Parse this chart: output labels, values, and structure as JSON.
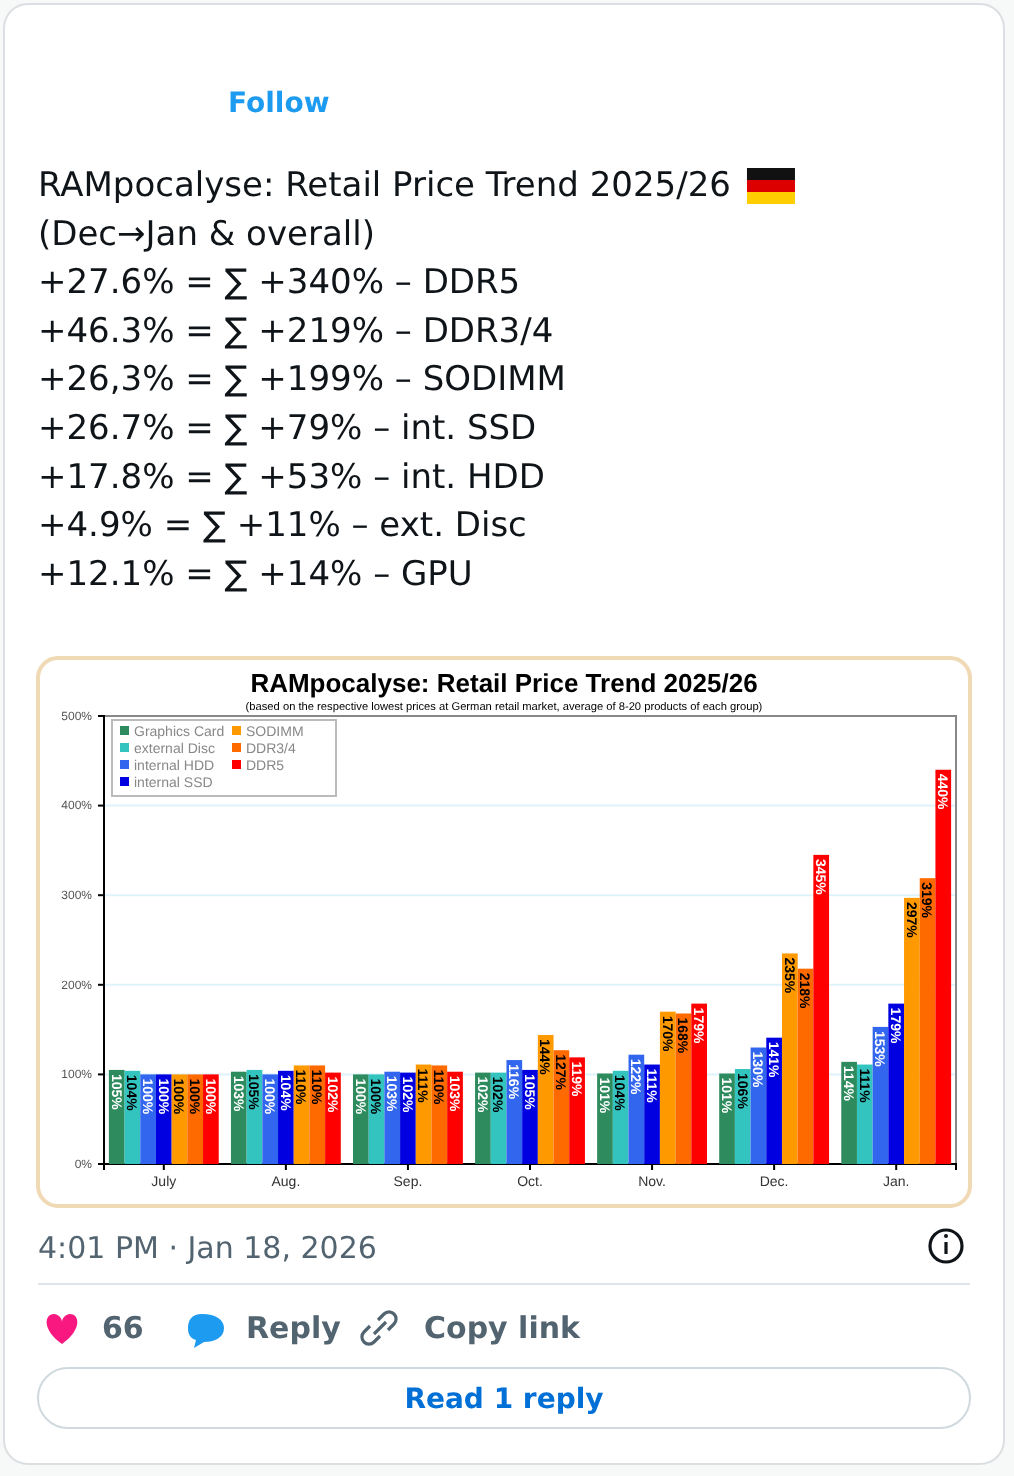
{
  "chart_data": {
    "type": "bar",
    "title": "RAMpocalyse: Retail Price Trend 2025/26",
    "subtitle": "(based on the respective lowest prices at German retail market, average of 8-20 products of each group)",
    "categories": [
      "July",
      "Aug.",
      "Sep.",
      "Oct.",
      "Nov.",
      "Dec.",
      "Jan."
    ],
    "series": [
      {
        "name": "Graphics Card",
        "color": "#2e8b5e",
        "values": [
          105,
          103,
          100,
          102,
          101,
          101,
          114
        ],
        "value_labels": [
          "105%",
          "103%",
          "100%",
          "102%",
          "101%",
          "101%",
          "114%"
        ]
      },
      {
        "name": "external Disc",
        "color": "#33c4c0",
        "values": [
          104,
          105,
          100,
          102,
          104,
          106,
          111
        ],
        "value_labels": [
          "104%",
          "105%",
          "100%",
          "102%",
          "104%",
          "106%",
          "111%"
        ]
      },
      {
        "name": "internal HDD",
        "color": "#3366ee",
        "values": [
          100,
          100,
          103,
          116,
          122,
          130,
          153
        ],
        "value_labels": [
          "100%",
          "100%",
          "103%",
          "116%",
          "122%",
          "130%",
          "153%"
        ]
      },
      {
        "name": "internal SSD",
        "color": "#0000e0",
        "values": [
          100,
          104,
          102,
          105,
          111,
          141,
          179
        ],
        "value_labels": [
          "100%",
          "104%",
          "102%",
          "105%",
          "111%",
          "141%",
          "179%"
        ]
      },
      {
        "name": "SODIMM",
        "color": "#ff9900",
        "values": [
          100,
          110,
          111,
          144,
          170,
          235,
          297
        ],
        "value_labels": [
          "100%",
          "110%",
          "111%",
          "144%",
          "170%",
          "235%",
          "297%"
        ]
      },
      {
        "name": "DDR3/4",
        "color": "#ff6a00",
        "values": [
          100,
          110,
          110,
          127,
          168,
          218,
          319
        ],
        "value_labels": [
          "100%",
          "110%",
          "110%",
          "127%",
          "168%",
          "218%",
          "319%"
        ]
      },
      {
        "name": "DDR5",
        "color": "#ff0000",
        "values": [
          100,
          102,
          103,
          119,
          179,
          345,
          440
        ],
        "value_labels": [
          "100%",
          "102%",
          "103%",
          "119%",
          "179%",
          "345%",
          "440%"
        ]
      }
    ],
    "ylim": [
      0,
      500
    ],
    "yticks": [
      {
        "value": 0,
        "label": "0%"
      },
      {
        "value": 100,
        "label": "100%"
      },
      {
        "value": 200,
        "label": "200%"
      },
      {
        "value": 300,
        "label": "300%"
      },
      {
        "value": 400,
        "label": "400%"
      },
      {
        "value": 500,
        "label": "500%"
      }
    ],
    "grid": "y",
    "legend": "top left",
    "annotations": [
      "RAMpocalyse: Retail Price Trend 2025/26",
      "(Dec→Jan & overall)",
      "+27.6% = ∑ +340% – DDR5",
      "+46.3% = ∑ +219% – DDR3/4",
      "+26,3% = ∑ +199% – SODIMM",
      "+26.7% = ∑ +79% – int. SSD",
      "+17.8% = ∑ +53% – int. HDD",
      "+4.9% = ∑ +11% – ext. Disc",
      "+12.1% = ∑ +14% – GPU",
      "Follow",
      "4:01 PM · Jan 18, 2026",
      "66",
      "Reply",
      "Copy link",
      "Read 1 reply"
    ]
  }
}
